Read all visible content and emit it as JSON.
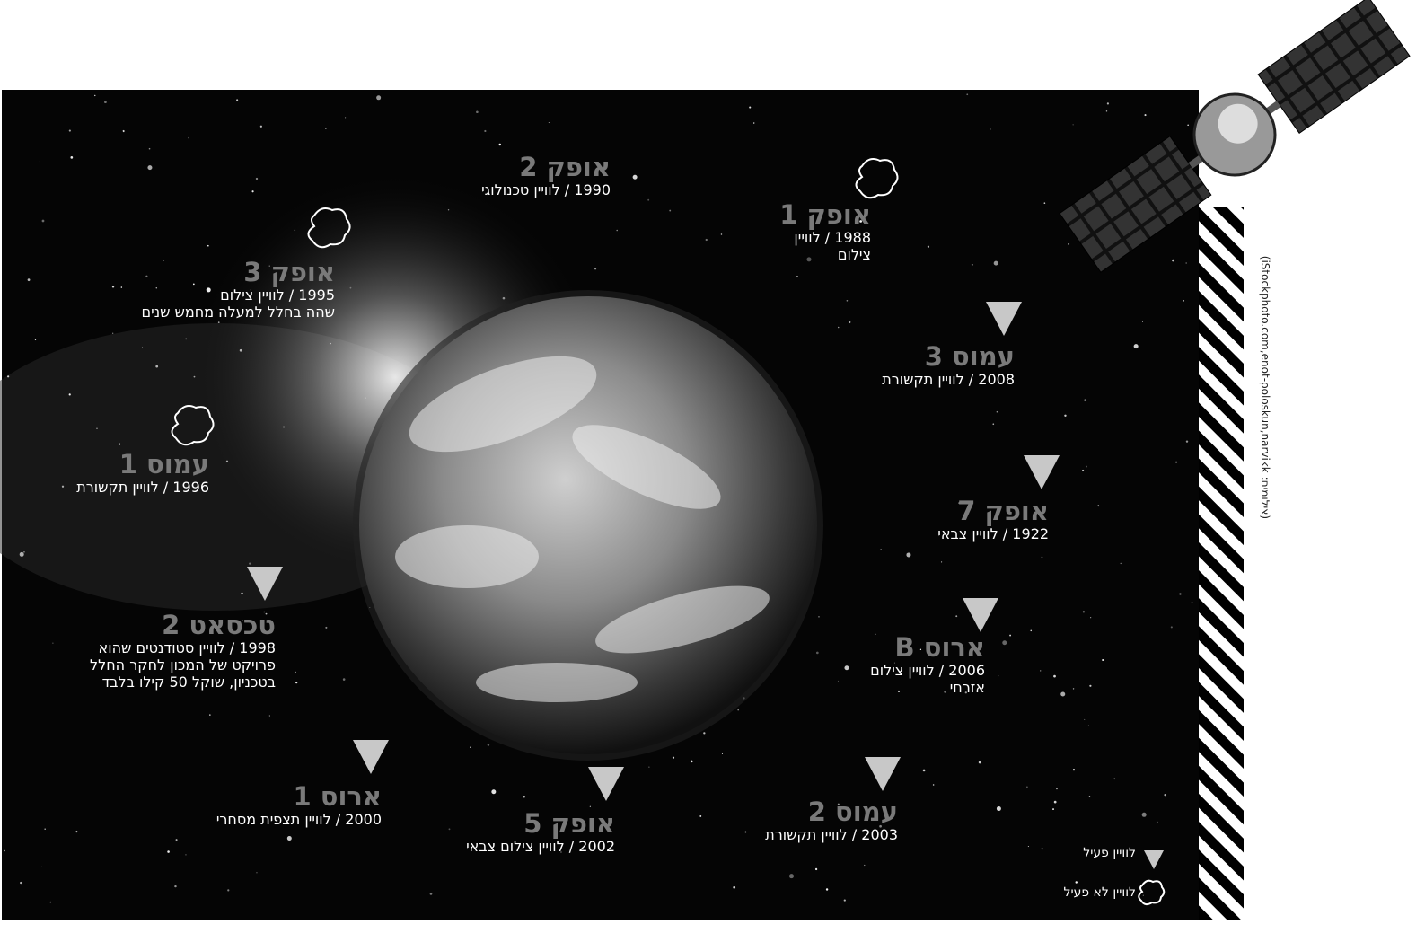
{
  "satellites": [
    {
      "name": "אופק 2",
      "lines": [
        "1990 / לוויין טכנולוגי"
      ]
    },
    {
      "name": "אופק 1",
      "lines": [
        "1988 / לוויין",
        "צילום"
      ]
    },
    {
      "name": "אופק 3",
      "lines": [
        "1995 / לוויין צילום",
        "שהה בחלל למעלה מחמש שנים"
      ]
    },
    {
      "name": "עמוס 3",
      "lines": [
        "2008 / לוויין תקשורת"
      ]
    },
    {
      "name": "עמוס 1",
      "lines": [
        "1996 / לוויין תקשורת"
      ]
    },
    {
      "name": "אופק 7",
      "lines": [
        "1922 / לוויין צבאי"
      ]
    },
    {
      "name": "טכסאט 2",
      "lines": [
        "1998 / לוויין סטודנטים שהוא",
        "פרויקט של המכון לחקר החלל",
        "בטכניון, שוקל 50 קילו בלבד"
      ]
    },
    {
      "name": "ארוס B",
      "lines": [
        "2006 / לוויין צילום",
        "אזרחי"
      ]
    },
    {
      "name": "ארוס 1",
      "lines": [
        "2000 / לוויין תצפית מסחרי"
      ]
    },
    {
      "name": "אופק 5",
      "lines": [
        "2002 / לוויין צילום צבאי"
      ]
    },
    {
      "name": "עמוס 2",
      "lines": [
        "2003 / לוויין תקשורת"
      ]
    }
  ],
  "legend": {
    "active": "לוויין פעיל",
    "inactive": "לוויין לא פעיל"
  },
  "credit": "(צילומים: iStockphoto.com,enot-poloskun,narvikk)"
}
